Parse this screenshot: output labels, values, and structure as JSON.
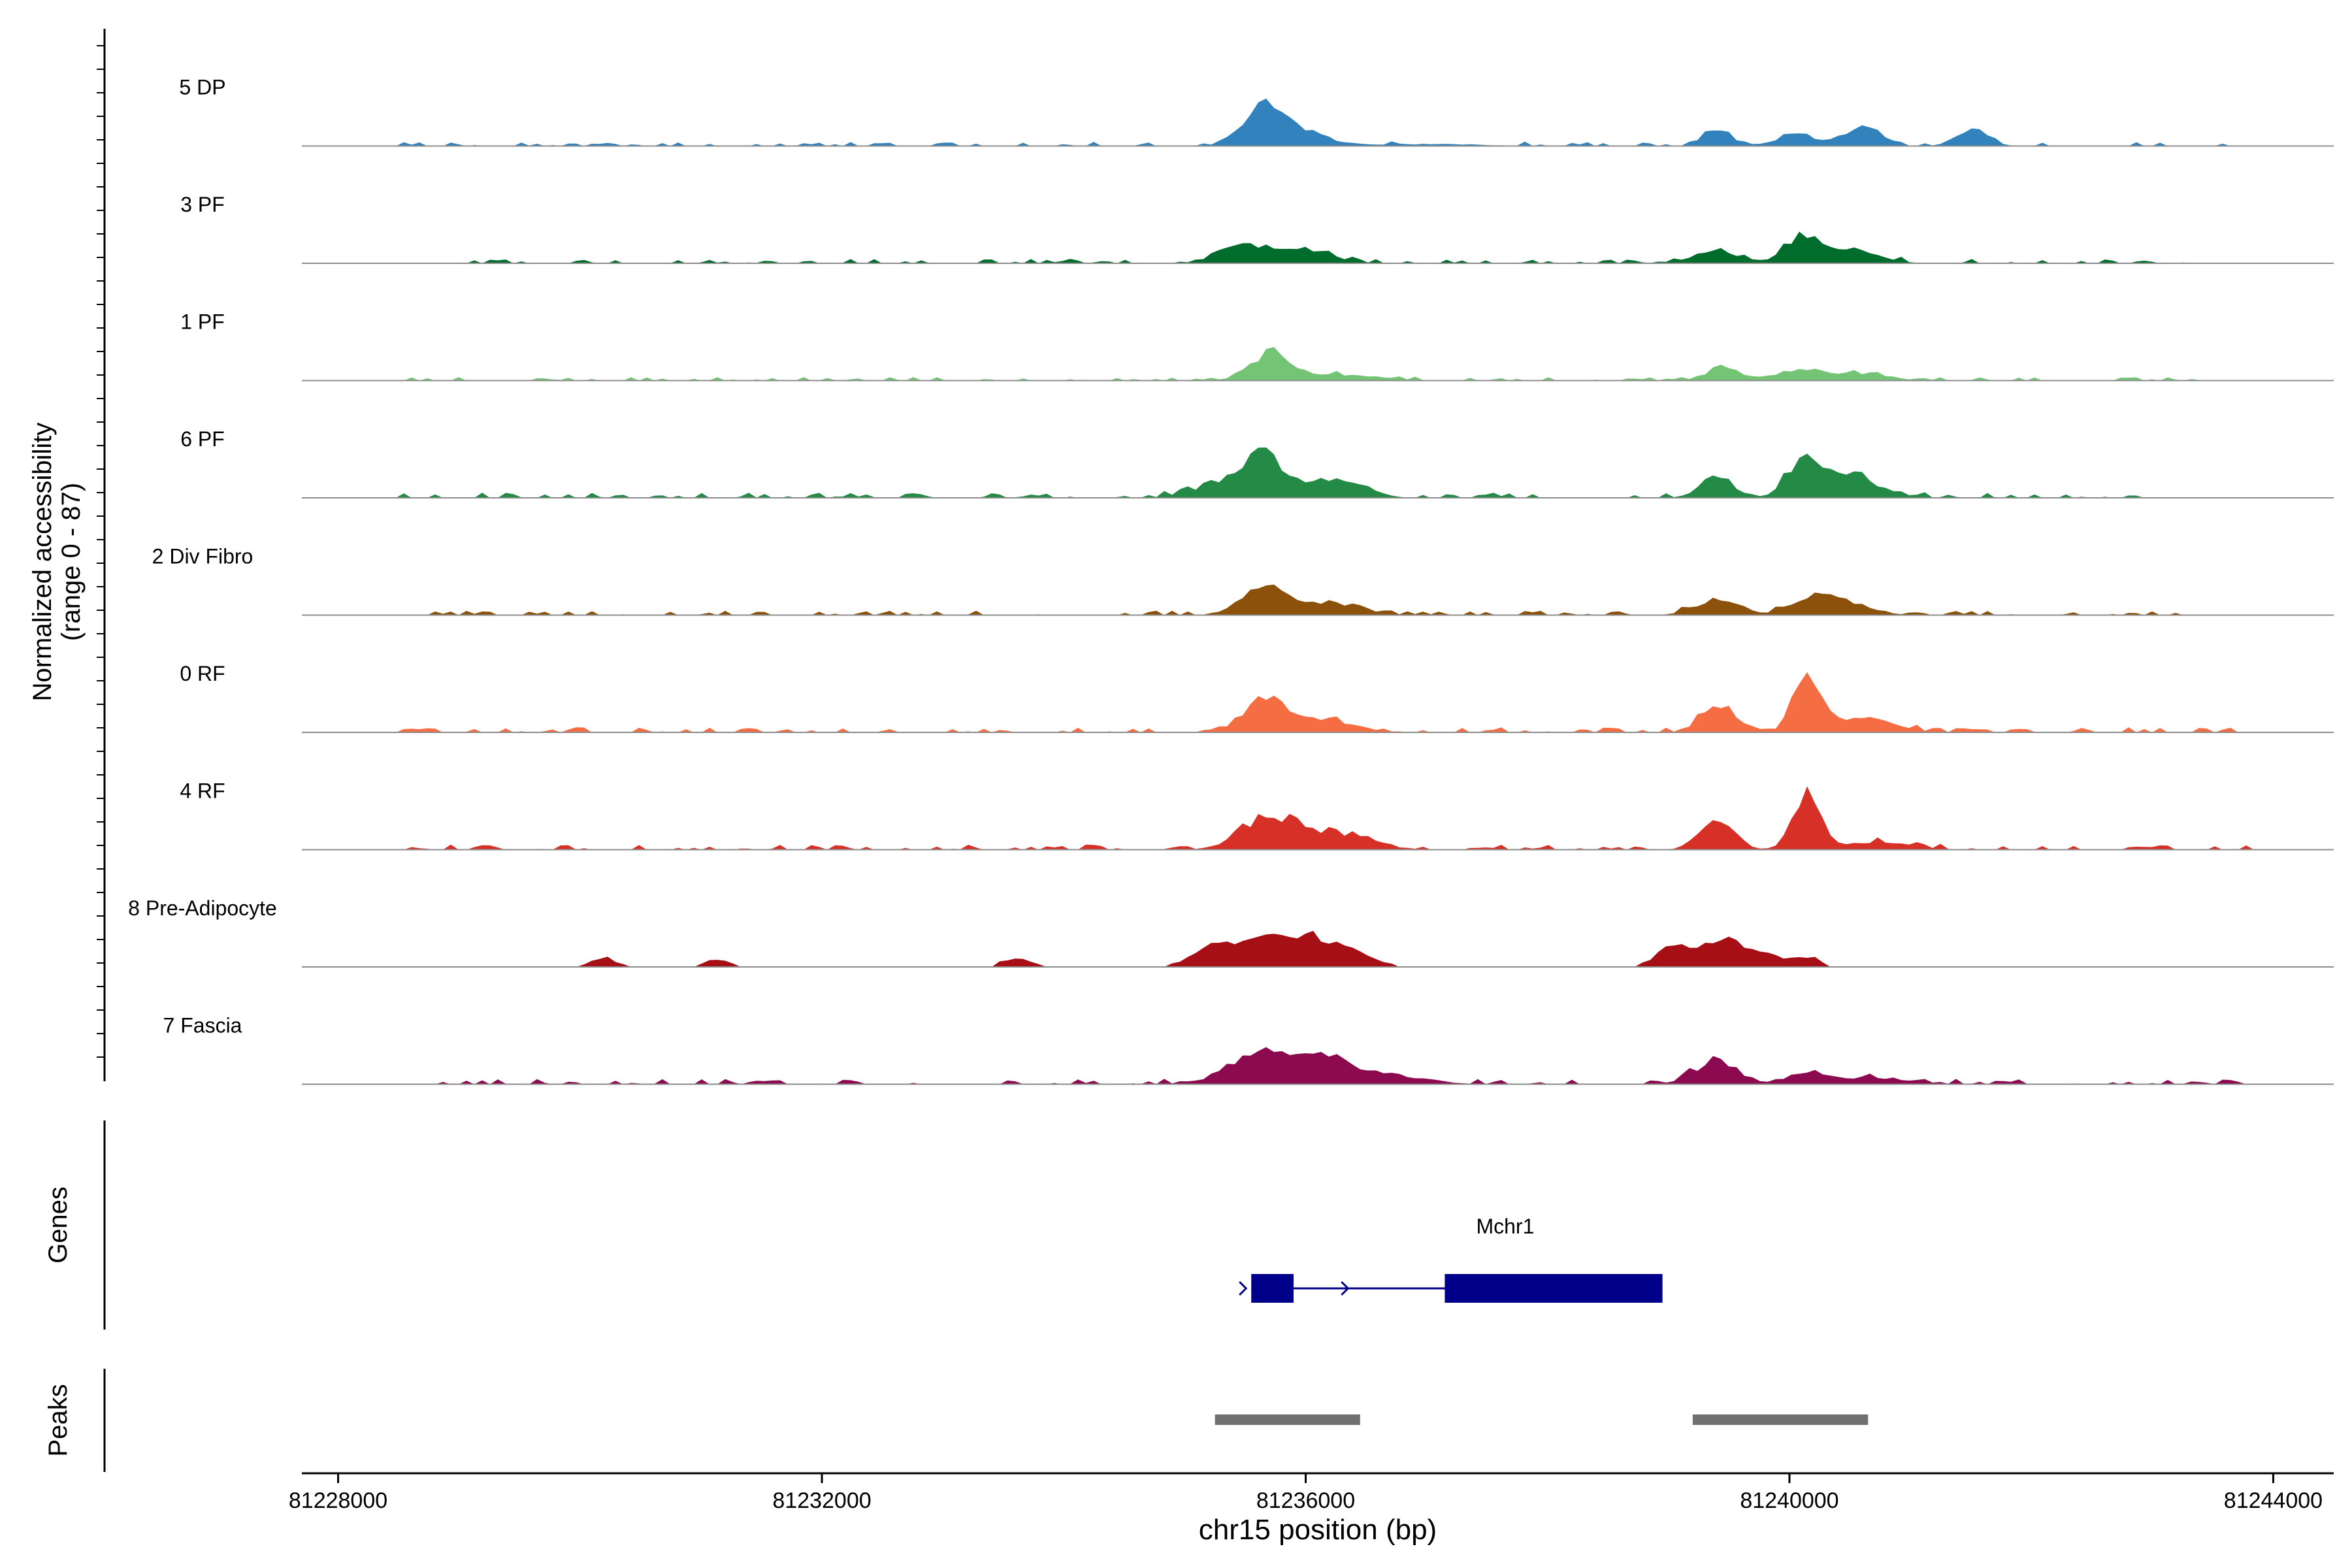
{
  "chart_data": {
    "type": "area",
    "title": "",
    "xlabel": "chr15 position (bp)",
    "ylabel_line1": "Normalized accessibility",
    "ylabel_line2": "(range 0 - 87)",
    "xlim": [
      81227700,
      81244500
    ],
    "ylim": [
      0,
      87
    ],
    "xticks": [
      81228000,
      81232000,
      81236000,
      81240000,
      81244000
    ],
    "xtick_labels": [
      "81228000",
      "81232000",
      "81236000",
      "81240000",
      "81244000"
    ],
    "baseline_color": "#8c8c8c",
    "tracks_panel_label": "",
    "series": [
      {
        "name": "5 DP",
        "color": "#3182bd",
        "peaks": [
          [
            81235650,
            150,
            26
          ],
          [
            81235850,
            260,
            18
          ],
          [
            81239400,
            110,
            17
          ],
          [
            81240050,
            180,
            10
          ],
          [
            81240600,
            150,
            18
          ],
          [
            81241500,
            130,
            15
          ],
          [
            81237000,
            400,
            2
          ]
        ],
        "noise_range": [
          81228500,
          81243900
        ],
        "noise_level": 2.5
      },
      {
        "name": "3 PF",
        "color": "#006d2c",
        "peaks": [
          [
            81235500,
            200,
            18
          ],
          [
            81236000,
            220,
            12
          ],
          [
            81239400,
            200,
            12
          ],
          [
            81240100,
            130,
            26
          ],
          [
            81240500,
            220,
            13
          ]
        ],
        "noise_range": [
          81229000,
          81243300
        ],
        "noise_level": 2.5
      },
      {
        "name": "1 PF",
        "color": "#74c476",
        "peaks": [
          [
            81235700,
            160,
            26
          ],
          [
            81236300,
            300,
            6
          ],
          [
            81239450,
            130,
            13
          ],
          [
            81240100,
            220,
            10
          ],
          [
            81240600,
            220,
            6
          ]
        ],
        "noise_range": [
          81228600,
          81243500
        ],
        "noise_level": 2.0
      },
      {
        "name": "6 PF",
        "color": "#238b45",
        "peaks": [
          [
            81235650,
            160,
            40
          ],
          [
            81235300,
            220,
            14
          ],
          [
            81236200,
            180,
            18
          ],
          [
            81239400,
            140,
            18
          ],
          [
            81240120,
            130,
            38
          ],
          [
            81240500,
            230,
            22
          ],
          [
            81236500,
            120,
            8
          ]
        ],
        "noise_range": [
          81228500,
          81243000
        ],
        "noise_level": 3.0
      },
      {
        "name": "2 Div Fibro",
        "color": "#8c510a",
        "peaks": [
          [
            81235650,
            170,
            30
          ],
          [
            81236200,
            250,
            13
          ],
          [
            81239400,
            180,
            15
          ],
          [
            81240200,
            170,
            20
          ],
          [
            81240550,
            180,
            9
          ]
        ],
        "noise_range": [
          81228500,
          81243500
        ],
        "noise_level": 2.5
      },
      {
        "name": "0 RF",
        "color": "#f46d43",
        "peaks": [
          [
            81235650,
            170,
            32
          ],
          [
            81236100,
            260,
            14
          ],
          [
            81239400,
            130,
            30
          ],
          [
            81240150,
            110,
            60
          ],
          [
            81240600,
            250,
            14
          ]
        ],
        "noise_range": [
          81228500,
          81243900
        ],
        "noise_level": 3.0
      },
      {
        "name": "4 RF",
        "color": "#d73027",
        "peaks": [
          [
            81235700,
            220,
            33
          ],
          [
            81236300,
            250,
            16
          ],
          [
            81239400,
            140,
            28
          ],
          [
            81240150,
            110,
            56
          ],
          [
            81240700,
            280,
            8
          ]
        ],
        "noise_range": [
          81228500,
          81243900
        ],
        "noise_level": 3.0
      },
      {
        "name": "8 Pre-Adipocyte",
        "color": "#a50f15",
        "peaks": [
          [
            81235700,
            350,
            26
          ],
          [
            81235200,
            150,
            12
          ],
          [
            81236200,
            260,
            18
          ],
          [
            81239050,
            150,
            20
          ],
          [
            81239450,
            150,
            28
          ],
          [
            81239800,
            150,
            12
          ],
          [
            81240150,
            100,
            10
          ],
          [
            81230200,
            100,
            9
          ],
          [
            81231150,
            100,
            8
          ],
          [
            81233600,
            120,
            9
          ]
        ],
        "noise_range": [
          81230000,
          81240200
        ],
        "noise_level": 0.0
      },
      {
        "name": "7 Fascia",
        "color": "#8b0a50",
        "peaks": [
          [
            81235700,
            300,
            30
          ],
          [
            81236200,
            220,
            18
          ],
          [
            81239400,
            180,
            22
          ],
          [
            81240150,
            150,
            12
          ],
          [
            81236700,
            280,
            9
          ],
          [
            81240700,
            280,
            7
          ]
        ],
        "noise_range": [
          81228800,
          81243800
        ],
        "noise_level": 3.0
      }
    ],
    "genes_track": {
      "axis_label": "Genes",
      "gene_name": "Mchr1",
      "color": "#00008b",
      "start": 81235550,
      "end": 81238950,
      "exons": [
        [
          81235550,
          81235900
        ],
        [
          81237150,
          81238950
        ]
      ],
      "strand": "+"
    },
    "peaks_track": {
      "axis_label": "Peaks",
      "color": "#707070",
      "regions": [
        [
          81235250,
          81236450
        ],
        [
          81239200,
          81240650
        ]
      ]
    }
  }
}
